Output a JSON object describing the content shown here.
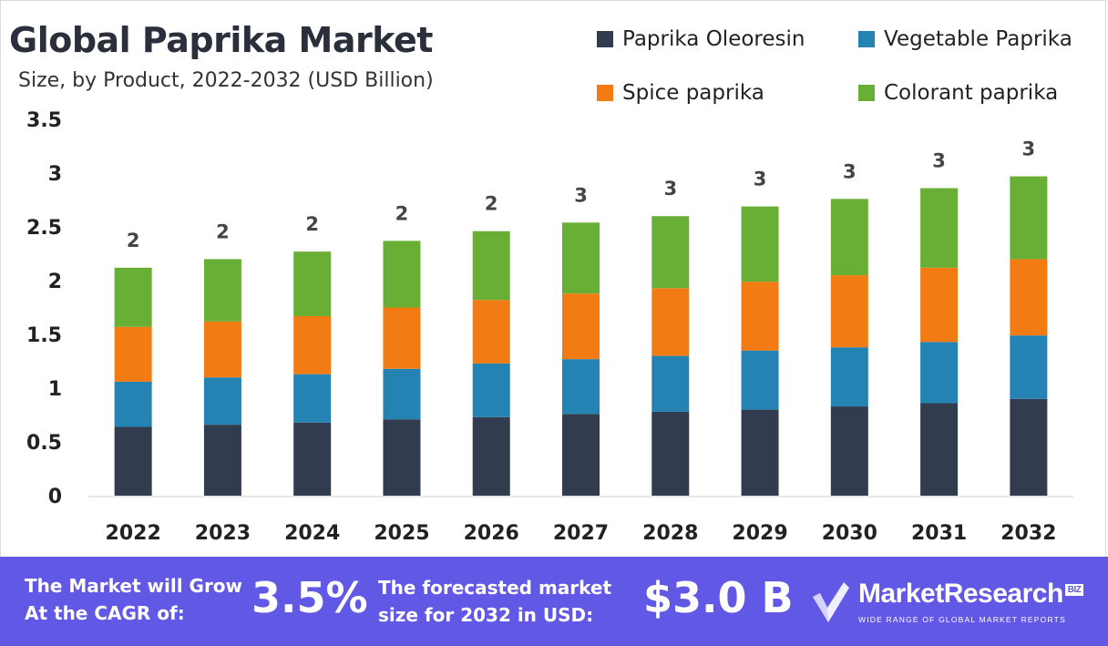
{
  "chart_data": {
    "type": "bar",
    "stacked": true,
    "title": "Global Paprika Market",
    "subtitle": "Size, by Product, 2022-2032 (USD Billion)",
    "categories": [
      "2022",
      "2023",
      "2024",
      "2025",
      "2026",
      "2027",
      "2028",
      "2029",
      "2030",
      "2031",
      "2032"
    ],
    "series": [
      {
        "name": "Paprika Oleoresin",
        "color": "#323c4f",
        "values": [
          0.64,
          0.66,
          0.68,
          0.71,
          0.73,
          0.76,
          0.78,
          0.8,
          0.83,
          0.86,
          0.9
        ]
      },
      {
        "name": "Vegetable Paprika",
        "color": "#2483b3",
        "values": [
          0.42,
          0.44,
          0.45,
          0.47,
          0.5,
          0.51,
          0.52,
          0.55,
          0.55,
          0.57,
          0.59
        ]
      },
      {
        "name": "Spice paprika",
        "color": "#f27b13",
        "values": [
          0.51,
          0.52,
          0.54,
          0.57,
          0.59,
          0.61,
          0.63,
          0.64,
          0.67,
          0.69,
          0.71
        ]
      },
      {
        "name": "Colorant paprika",
        "color": "#6aaf35",
        "values": [
          0.55,
          0.58,
          0.6,
          0.62,
          0.64,
          0.66,
          0.67,
          0.7,
          0.71,
          0.74,
          0.77
        ]
      }
    ],
    "total_labels": [
      "2",
      "2",
      "2",
      "2",
      "2",
      "3",
      "3",
      "3",
      "3",
      "3",
      "3"
    ],
    "yticks": [
      "0",
      "0.5",
      "1",
      "1.5",
      "2",
      "2.5",
      "3",
      "3.5"
    ],
    "ylim": [
      0,
      3.5
    ],
    "xlabel": "",
    "ylabel": "",
    "grid": false,
    "legend_position": "top-right"
  },
  "footer": {
    "cagr_label_line1": "The Market will Grow",
    "cagr_label_line2": "At the CAGR of:",
    "cagr_value": "3.5%",
    "forecast_label_line1": "The forecasted market",
    "forecast_label_line2": "size for 2032 in USD:",
    "forecast_value": "$3.0 B",
    "brand_name": "MarketResearch",
    "brand_badge": "BIZ",
    "brand_tagline": "WIDE RANGE OF GLOBAL MARKET REPORTS",
    "background_color": "#6258e6"
  }
}
